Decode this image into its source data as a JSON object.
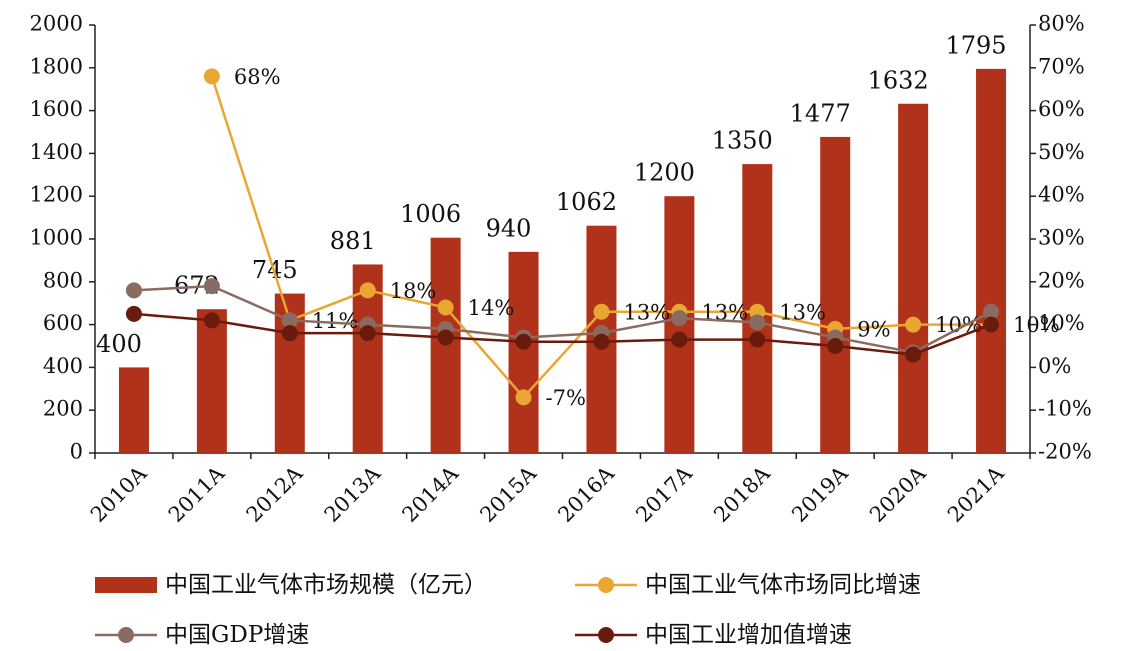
{
  "chart_data": {
    "type": "bar",
    "categories": [
      "2010A",
      "2011A",
      "2012A",
      "2013A",
      "2014A",
      "2015A",
      "2016A",
      "2017A",
      "2018A",
      "2019A",
      "2020A",
      "2021A"
    ],
    "series": [
      {
        "name": "中国工业气体市场规模（亿元）",
        "type": "bar",
        "color": "#b0321a",
        "values": [
          400,
          672,
          745,
          881,
          1006,
          940,
          1062,
          1200,
          1350,
          1477,
          1632,
          1795
        ]
      },
      {
        "name": "中国工业气体市场同比增速",
        "type": "line",
        "axis": "y2",
        "color": "#e9a632",
        "values": [
          null,
          68,
          11,
          18,
          14,
          -7,
          13,
          13,
          13,
          9,
          10,
          10
        ],
        "value_labels": [
          null,
          "68%",
          "11%",
          "18%",
          "14%",
          "-7%",
          "13%",
          "13%",
          "13%",
          "9%",
          "10%",
          "10%"
        ]
      },
      {
        "name": "中国GDP增速",
        "type": "line",
        "axis": "y2",
        "color": "#8a6b62",
        "values": [
          18,
          19,
          11,
          10,
          9,
          7,
          8,
          11.5,
          10.5,
          7,
          3.5,
          13
        ]
      },
      {
        "name": "中国工业增加值增速",
        "type": "line",
        "axis": "y2",
        "color": "#6a1b0c",
        "values": [
          12.5,
          11,
          8,
          8,
          7,
          6,
          6,
          6.5,
          6.5,
          5,
          3,
          10
        ]
      }
    ],
    "ylim": [
      0,
      2000
    ],
    "yticks": [
      0,
      200,
      400,
      600,
      800,
      1000,
      1200,
      1400,
      1600,
      1800,
      2000
    ],
    "y2lim": [
      -20,
      80
    ],
    "y2ticks": [
      {
        "value": -20,
        "label": "-20%"
      },
      {
        "value": -10,
        "label": "-10%"
      },
      {
        "value": 0,
        "label": "0%"
      },
      {
        "value": 10,
        "label": "10%"
      },
      {
        "value": 20,
        "label": "20%"
      },
      {
        "value": 30,
        "label": "30%"
      },
      {
        "value": 40,
        "label": "40%"
      },
      {
        "value": 50,
        "label": "50%"
      },
      {
        "value": 60,
        "label": "60%"
      },
      {
        "value": 70,
        "label": "70%"
      },
      {
        "value": 80,
        "label": "80%"
      }
    ],
    "grid": false
  }
}
